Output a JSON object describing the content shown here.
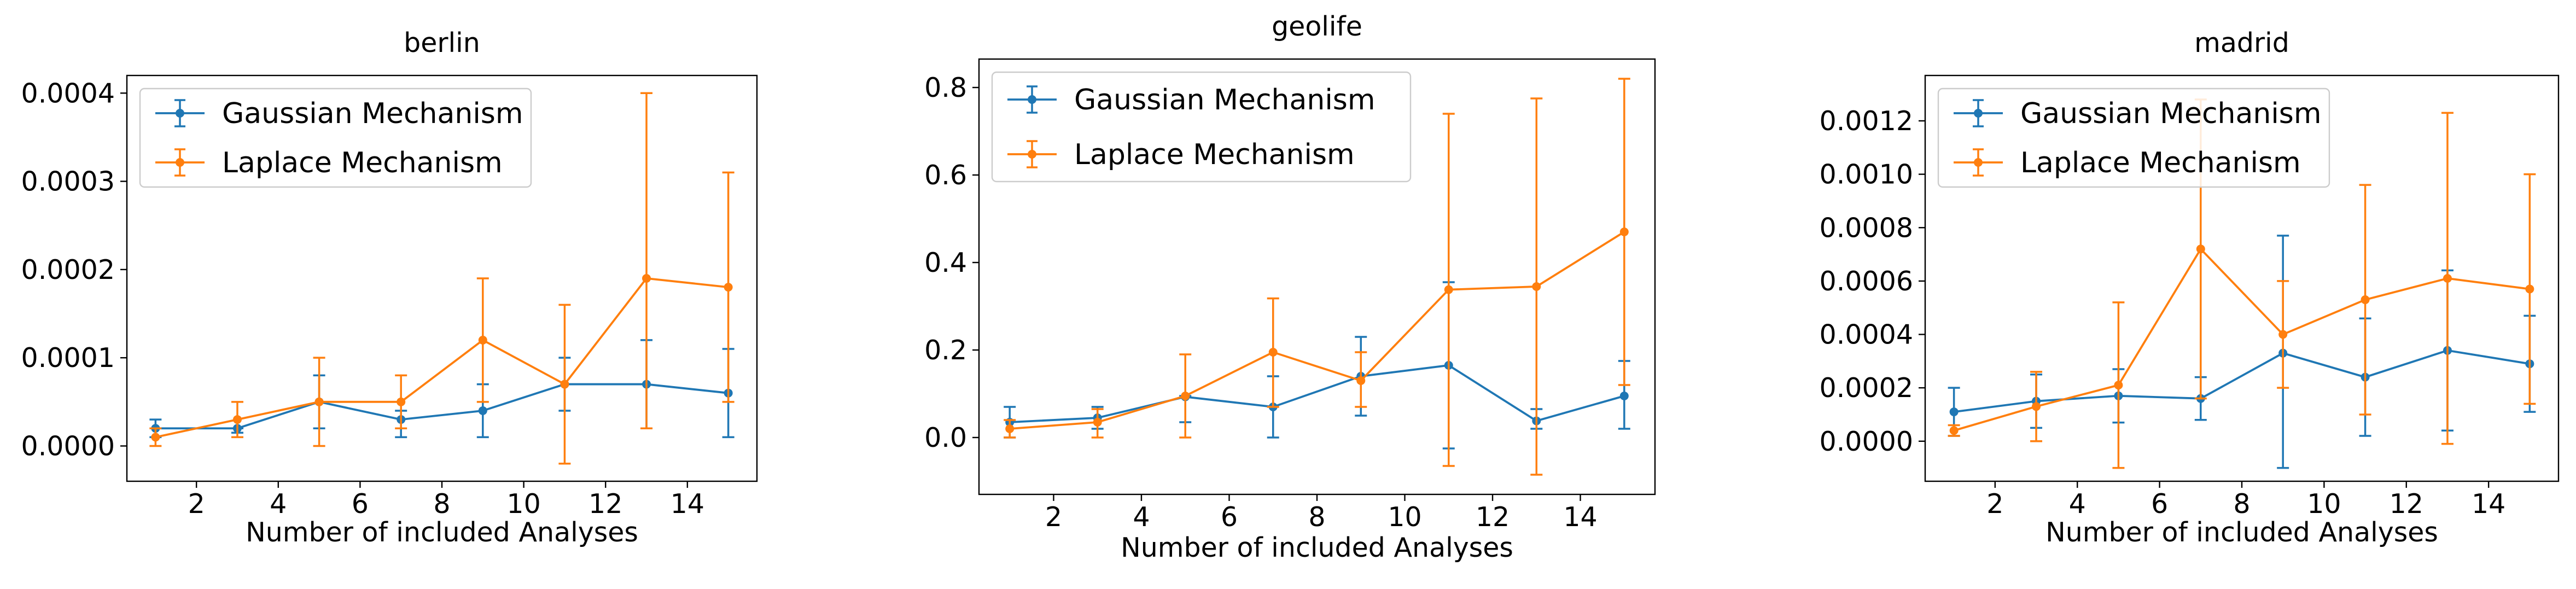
{
  "chart_data": [
    {
      "type": "line",
      "title": "berlin",
      "xlabel": "Number of included Analyses",
      "ylabel": "",
      "x": [
        1,
        3,
        5,
        7,
        9,
        11,
        13,
        15
      ],
      "xlim": [
        0.3,
        15.7
      ],
      "ylim": [
        -4e-05,
        0.00042
      ],
      "xticks": [
        2,
        4,
        6,
        8,
        10,
        12,
        14
      ],
      "yticks": [
        0.0,
        0.0001,
        0.0002,
        0.0003,
        0.0004
      ],
      "yticklabels": [
        "0.0000",
        "0.0001",
        "0.0002",
        "0.0003",
        "0.0004"
      ],
      "legend": "top-left",
      "series": [
        {
          "name": "Gaussian Mechanism",
          "color": "#1f77b4",
          "values": [
            2e-05,
            2e-05,
            5e-05,
            3e-05,
            4e-05,
            7e-05,
            7e-05,
            6e-05
          ],
          "err_low": [
            1e-05,
            1.5e-05,
            2e-05,
            1e-05,
            1e-05,
            4e-05,
            2e-05,
            1e-05
          ],
          "err_high": [
            3e-05,
            2e-05,
            8e-05,
            4e-05,
            7e-05,
            0.0001,
            0.00012,
            0.00011
          ]
        },
        {
          "name": "Laplace Mechanism",
          "color": "#ff7f0e",
          "values": [
            1e-05,
            3e-05,
            5e-05,
            5e-05,
            0.00012,
            7e-05,
            0.00019,
            0.00018
          ],
          "err_low": [
            0.0,
            1e-05,
            0.0,
            2e-05,
            5e-05,
            -2e-05,
            2e-05,
            5e-05
          ],
          "err_high": [
            2e-05,
            5e-05,
            0.0001,
            8e-05,
            0.00019,
            0.00016,
            0.0004,
            0.00031
          ]
        }
      ]
    },
    {
      "type": "line",
      "title": "geolife",
      "xlabel": "Number of included Analyses",
      "ylabel": "",
      "x": [
        1,
        3,
        5,
        7,
        9,
        11,
        13,
        15
      ],
      "xlim": [
        0.3,
        15.7
      ],
      "ylim": [
        -0.13,
        0.865
      ],
      "xticks": [
        2,
        4,
        6,
        8,
        10,
        12,
        14
      ],
      "yticks": [
        0.0,
        0.2,
        0.4,
        0.6,
        0.8
      ],
      "yticklabels": [
        "0.0",
        "0.2",
        "0.4",
        "0.6",
        "0.8"
      ],
      "legend": "top-left",
      "series": [
        {
          "name": "Gaussian Mechanism",
          "color": "#1f77b4",
          "values": [
            0.035,
            0.045,
            0.093,
            0.07,
            0.14,
            0.165,
            0.038,
            0.095
          ],
          "err_low": [
            0.0,
            0.02,
            0.035,
            0.0,
            0.05,
            -0.025,
            0.02,
            0.02
          ],
          "err_high": [
            0.07,
            0.07,
            0.095,
            0.14,
            0.23,
            0.355,
            0.065,
            0.175
          ]
        },
        {
          "name": "Laplace Mechanism",
          "color": "#ff7f0e",
          "values": [
            0.02,
            0.035,
            0.095,
            0.195,
            0.13,
            0.338,
            0.345,
            0.47
          ],
          "err_low": [
            0.0,
            0.0,
            0.0,
            0.07,
            0.07,
            -0.065,
            -0.085,
            0.12
          ],
          "err_high": [
            0.04,
            0.065,
            0.19,
            0.318,
            0.195,
            0.74,
            0.775,
            0.82
          ]
        }
      ]
    },
    {
      "type": "line",
      "title": "madrid",
      "xlabel": "Number of included Analyses",
      "ylabel": "",
      "x": [
        1,
        3,
        5,
        7,
        9,
        11,
        13,
        15
      ],
      "xlim": [
        0.3,
        15.7
      ],
      "ylim": [
        -0.00015,
        0.00137
      ],
      "xticks": [
        2,
        4,
        6,
        8,
        10,
        12,
        14
      ],
      "yticks": [
        0.0,
        0.0002,
        0.0004,
        0.0006,
        0.0008,
        0.001,
        0.0012
      ],
      "yticklabels": [
        "0.0000",
        "0.0002",
        "0.0004",
        "0.0006",
        "0.0008",
        "0.0010",
        "0.0012"
      ],
      "legend": "top-left",
      "series": [
        {
          "name": "Gaussian Mechanism",
          "color": "#1f77b4",
          "values": [
            0.00011,
            0.00015,
            0.00017,
            0.00016,
            0.00033,
            0.00024,
            0.00034,
            0.00029
          ],
          "err_low": [
            2e-05,
            5e-05,
            7e-05,
            8e-05,
            -0.0001,
            2e-05,
            4e-05,
            0.00011
          ],
          "err_high": [
            0.0002,
            0.00025,
            0.00027,
            0.00024,
            0.00077,
            0.00046,
            0.00064,
            0.00047
          ]
        },
        {
          "name": "Laplace Mechanism",
          "color": "#ff7f0e",
          "values": [
            4e-05,
            0.00013,
            0.00021,
            0.00072,
            0.0004,
            0.00053,
            0.00061,
            0.00057
          ],
          "err_low": [
            2e-05,
            0.0,
            -0.0001,
            0.00016,
            0.0002,
            0.0001,
            -1e-05,
            0.00014
          ],
          "err_high": [
            6e-05,
            0.00026,
            0.00052,
            0.00128,
            0.0006,
            0.00096,
            0.00123,
            0.001
          ]
        }
      ]
    }
  ]
}
